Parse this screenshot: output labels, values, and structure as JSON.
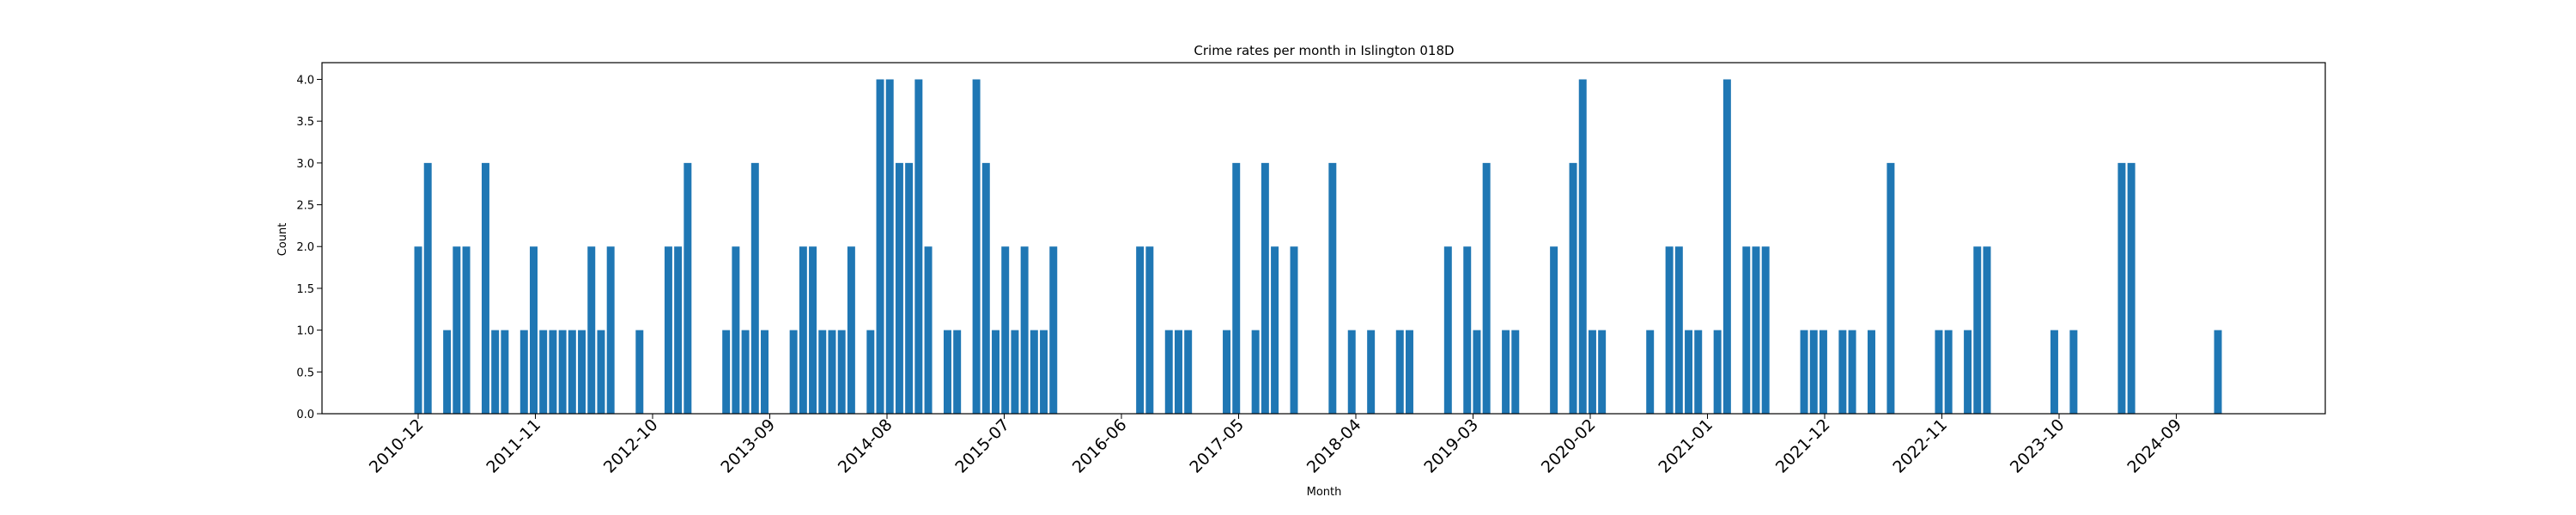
{
  "chart_data": {
    "type": "bar",
    "title": "Crime rates per month in Islington 018D",
    "xlabel": "Month",
    "ylabel": "Count",
    "ylim": [
      0,
      4.2
    ],
    "yticks": [
      "0.0",
      "0.5",
      "1.0",
      "1.5",
      "2.0",
      "2.5",
      "3.0",
      "3.5",
      "4.0"
    ],
    "xtick_labels": [
      "2010-12",
      "2011-11",
      "2012-10",
      "2013-09",
      "2014-08",
      "2015-07",
      "2016-06",
      "2017-05",
      "2018-04",
      "2019-03",
      "2020-02",
      "2021-01",
      "2021-12",
      "2022-11",
      "2023-10",
      "2024-09"
    ],
    "bar_color": "#1f77b4",
    "grid": false,
    "series": [
      {
        "x": "2010-12",
        "values": [
          2,
          3,
          0,
          1,
          2,
          2,
          0,
          3,
          1,
          1,
          0,
          1,
          2,
          1,
          1,
          1,
          1,
          1,
          2,
          1,
          2,
          0,
          0,
          1,
          0,
          0,
          2,
          2,
          3,
          0,
          0,
          0,
          1,
          2,
          1,
          3,
          1,
          0,
          0,
          1,
          2,
          2,
          1,
          1,
          1,
          2,
          0,
          1,
          4,
          4,
          3,
          3,
          4,
          2,
          0,
          1,
          1,
          0,
          4,
          3,
          1,
          2,
          1,
          2,
          1,
          1,
          2,
          0,
          0,
          0,
          0,
          0,
          0,
          0,
          0,
          2,
          2,
          0,
          1,
          1,
          1,
          0,
          0,
          0,
          1,
          3,
          0,
          1,
          3,
          2,
          0,
          2,
          0,
          0,
          0,
          3,
          0,
          1,
          0,
          1,
          0,
          0,
          1,
          1,
          0,
          0,
          0,
          2,
          0,
          2,
          1,
          3,
          0,
          1,
          1,
          0,
          0,
          0,
          2,
          0,
          3,
          4,
          1,
          1,
          0,
          0,
          0,
          0,
          1,
          0,
          2,
          2,
          1,
          1,
          0,
          1,
          4,
          0,
          2,
          2,
          2,
          0,
          0,
          0,
          1,
          1,
          1,
          0,
          1,
          1,
          0,
          1,
          0,
          3,
          0,
          0,
          0,
          0,
          1,
          1,
          0,
          1,
          2,
          2,
          0,
          0,
          0,
          0,
          0,
          0,
          1,
          0,
          1,
          0,
          0,
          0,
          0,
          3,
          3,
          0,
          0,
          0,
          0,
          0,
          0,
          0,
          0,
          1
        ]
      }
    ]
  }
}
